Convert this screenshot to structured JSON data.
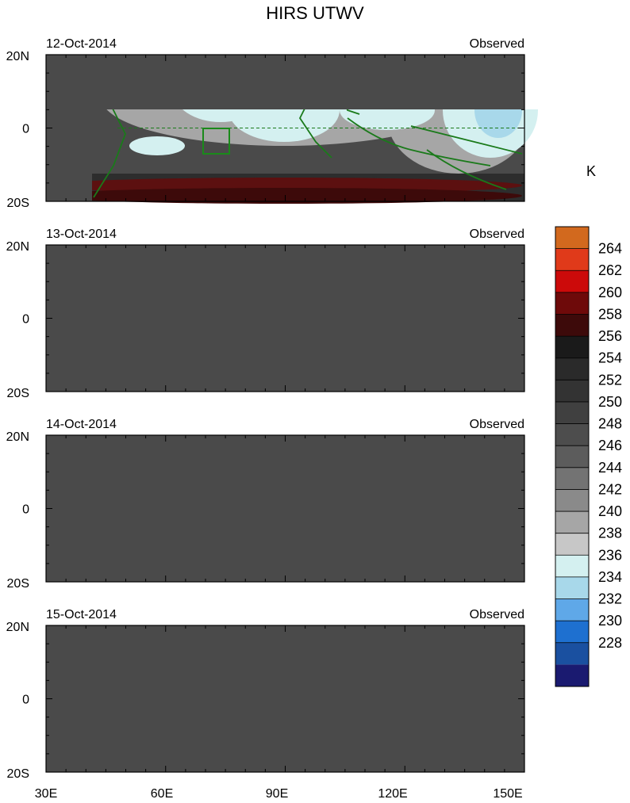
{
  "title": "HIRS UTWV",
  "units": "K",
  "lon_ticks": [
    "30E",
    "60E",
    "90E",
    "120E",
    "150E"
  ],
  "lat_ticks": [
    "20N",
    "0",
    "20S"
  ],
  "panels": [
    {
      "date": "12-Oct-2014",
      "label": "Observed"
    },
    {
      "date": "13-Oct-2014",
      "label": "Observed"
    },
    {
      "date": "14-Oct-2014",
      "label": "Observed"
    },
    {
      "date": "15-Oct-2014",
      "label": "Observed"
    }
  ],
  "colorbar": {
    "levels": [
      "264",
      "262",
      "260",
      "258",
      "256",
      "254",
      "252",
      "250",
      "248",
      "246",
      "244",
      "242",
      "240",
      "238",
      "236",
      "234",
      "232",
      "230",
      "228"
    ],
    "colors": [
      "#d2691e",
      "#e03a1a",
      "#cc0a0a",
      "#6e0a0a",
      "#3d0a0a",
      "#1a1a1a",
      "#2a2a2a",
      "#333333",
      "#404040",
      "#4d4d4d",
      "#5c5c5c",
      "#737373",
      "#8a8a8a",
      "#a6a6a6",
      "#c7c7c7",
      "#d4f0f0",
      "#a8d8ea",
      "#5fa8e8",
      "#1e70d0",
      "#1a50a0",
      "#1a1a70"
    ]
  },
  "colors": {
    "coast": "#1a7a1a",
    "box": "#1a8a1a",
    "moist": "#3a7ad8",
    "dry": "#2a2a2a"
  }
}
